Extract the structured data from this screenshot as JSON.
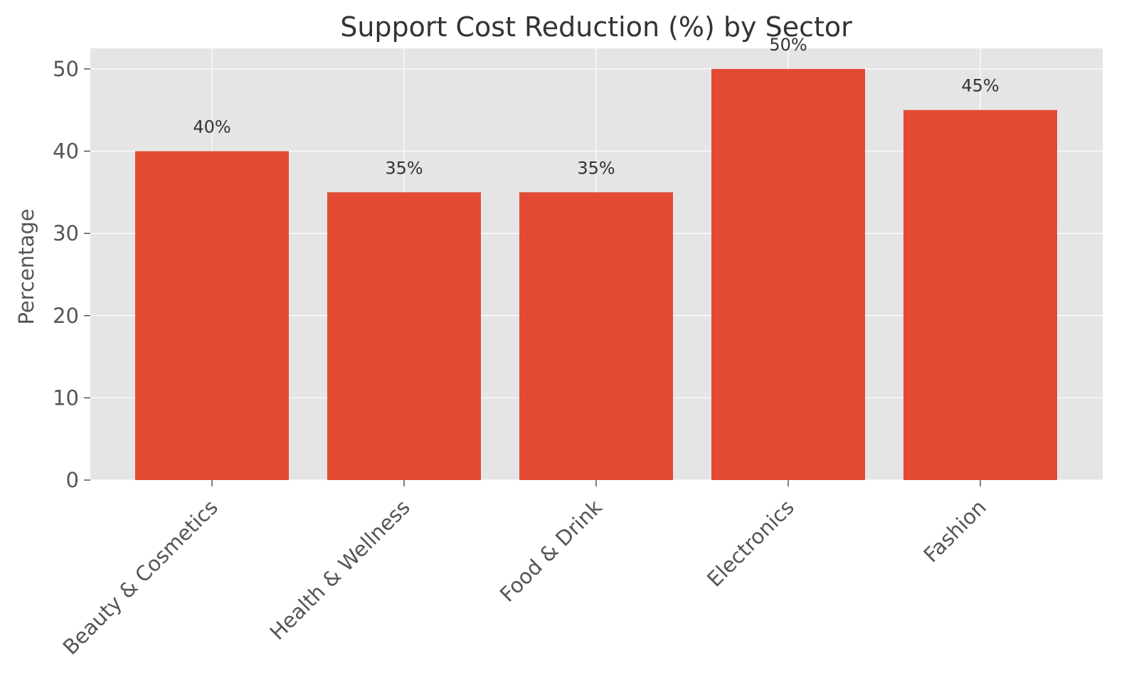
{
  "chart_data": {
    "type": "bar",
    "title": "Support Cost Reduction (%) by Sector",
    "xlabel": "",
    "ylabel": "Percentage",
    "categories": [
      "Beauty & Cosmetics",
      "Health & Wellness",
      "Food & Drink",
      "Electronics",
      "Fashion"
    ],
    "values": [
      40,
      35,
      35,
      50,
      45
    ],
    "data_labels": [
      "40%",
      "35%",
      "35%",
      "50%",
      "45%"
    ],
    "ylim": [
      0,
      52.5
    ],
    "yticks": [
      0,
      10,
      20,
      30,
      40,
      50
    ],
    "grid": true,
    "bar_color": "#E24A33",
    "background_color": "#E5E5E5",
    "grid_color": "#FFFFFF"
  }
}
